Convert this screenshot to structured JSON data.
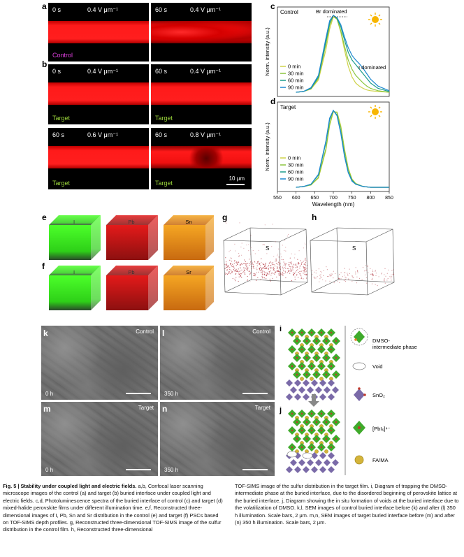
{
  "panel_letters": {
    "a": "a",
    "b": "b",
    "c": "c",
    "d": "d",
    "e": "e",
    "f": "f",
    "g": "g",
    "h": "h",
    "k": "k",
    "l": "l",
    "m": "m",
    "n": "n",
    "i": "i",
    "j": "j"
  },
  "confocal": {
    "a_left": {
      "time": "0 s",
      "field": "0.4 V μm⁻¹",
      "label": "Control"
    },
    "a_right": {
      "time": "60 s",
      "field": "0.4 V μm⁻¹"
    },
    "b1_left": {
      "time": "0 s",
      "field": "0.4 V μm⁻¹",
      "label": "Target"
    },
    "b1_right": {
      "time": "60 s",
      "field": "0.4 V μm⁻¹",
      "label": "Target"
    },
    "b2_left": {
      "time": "60 s",
      "field": "0.6 V μm⁻¹",
      "label": "Target"
    },
    "b2_right": {
      "time": "60 s",
      "field": "0.8 V μm⁻¹",
      "label": "Target",
      "scale": "10 μm"
    },
    "colors": {
      "control_label": "#e040e0",
      "target_label": "#9ad53a"
    }
  },
  "pl_c": {
    "title": "Control",
    "annot_br": "Br dominated",
    "annot_i": "I dominated",
    "legend": [
      "0 min",
      "30 min",
      "60 min",
      "90 min"
    ]
  },
  "pl_d": {
    "title": "Target",
    "legend": [
      "0 min",
      "30 min",
      "60 min",
      "90 min"
    ]
  },
  "pl_axes": {
    "ylabel": "Norm. intensity (a.u.)",
    "xlabel": "Wavelength (nm)",
    "xticks": [
      "550",
      "600",
      "650",
      "700",
      "750",
      "800",
      "850"
    ]
  },
  "chart_data": [
    {
      "type": "line",
      "title": "Control",
      "xlabel": "Wavelength (nm)",
      "ylabel": "Norm. intensity (a.u.)",
      "xlim": [
        550,
        850
      ],
      "x": [
        600,
        620,
        640,
        660,
        680,
        690,
        700,
        710,
        720,
        730,
        740,
        750,
        760,
        770,
        780,
        790,
        800,
        820,
        850
      ],
      "series": [
        {
          "name": "0 min",
          "color": "#cfd24a",
          "values": [
            0,
            0.01,
            0.04,
            0.16,
            0.55,
            0.82,
            0.98,
            0.95,
            0.78,
            0.55,
            0.34,
            0.2,
            0.12,
            0.08,
            0.05,
            0.03,
            0.02,
            0.01,
            0
          ]
        },
        {
          "name": "30 min",
          "color": "#8cc63f",
          "values": [
            0,
            0.01,
            0.05,
            0.18,
            0.62,
            0.87,
            1.0,
            0.95,
            0.8,
            0.6,
            0.42,
            0.3,
            0.22,
            0.17,
            0.12,
            0.08,
            0.05,
            0.02,
            0
          ]
        },
        {
          "name": "60 min",
          "color": "#1b9c8a",
          "values": [
            0,
            0.01,
            0.05,
            0.2,
            0.66,
            0.9,
            1.0,
            0.96,
            0.85,
            0.68,
            0.52,
            0.42,
            0.36,
            0.3,
            0.24,
            0.18,
            0.12,
            0.05,
            0.01
          ]
        },
        {
          "name": "90 min",
          "color": "#1e88d0",
          "values": [
            0,
            0.01,
            0.06,
            0.22,
            0.7,
            0.93,
            1.0,
            0.97,
            0.88,
            0.72,
            0.58,
            0.48,
            0.42,
            0.37,
            0.31,
            0.24,
            0.17,
            0.08,
            0.02
          ]
        }
      ]
    },
    {
      "type": "line",
      "title": "Target",
      "xlabel": "Wavelength (nm)",
      "ylabel": "Norm. intensity (a.u.)",
      "xlim": [
        550,
        850
      ],
      "x": [
        600,
        620,
        640,
        660,
        680,
        690,
        700,
        710,
        720,
        730,
        740,
        750,
        760,
        780,
        800,
        850
      ],
      "series": [
        {
          "name": "0 min",
          "color": "#cfd24a",
          "values": [
            0,
            0.01,
            0.03,
            0.12,
            0.48,
            0.8,
            0.98,
            0.98,
            0.8,
            0.5,
            0.25,
            0.11,
            0.05,
            0.01,
            0,
            0
          ]
        },
        {
          "name": "30 min",
          "color": "#8cc63f",
          "values": [
            0,
            0.01,
            0.03,
            0.13,
            0.5,
            0.82,
            0.99,
            0.97,
            0.78,
            0.48,
            0.24,
            0.1,
            0.05,
            0.01,
            0,
            0
          ]
        },
        {
          "name": "60 min",
          "color": "#1b9c8a",
          "values": [
            0,
            0.01,
            0.04,
            0.16,
            0.58,
            0.88,
            1.0,
            0.94,
            0.72,
            0.42,
            0.2,
            0.09,
            0.04,
            0.01,
            0,
            0
          ]
        },
        {
          "name": "90 min",
          "color": "#1e88d0",
          "values": [
            0,
            0.01,
            0.04,
            0.17,
            0.6,
            0.9,
            1.0,
            0.93,
            0.7,
            0.4,
            0.19,
            0.08,
            0.04,
            0.01,
            0,
            0
          ]
        }
      ]
    }
  ],
  "cubes_e": [
    "I",
    "Pb",
    "Sn"
  ],
  "cubes_f": [
    "I",
    "Pb",
    "Sr"
  ],
  "tof_g": "S",
  "tof_h": "S",
  "sem": {
    "k": {
      "name": "Control",
      "time": "0 h"
    },
    "l": {
      "name": "Control",
      "time": "350 h"
    },
    "m": {
      "name": "Target",
      "time": "0 h"
    },
    "n": {
      "name": "Target",
      "time": "350 h"
    }
  },
  "schematic_legend": {
    "dmso": "DMSO-\nintermediate phase",
    "void": "Void",
    "sno2": "SnO₂",
    "pbi6": "[PbI₆]⁴⁻",
    "fama": "FA/MA"
  },
  "caption": {
    "fig": "Fig. 5 | Stability under coupled light and electric fields.",
    "left": " a,b, Confocal laser scanning microscope images of the control (a) and target (b) buried interface under coupled light and electric fields. c,d, Photoluminescence spectra of the buried interface of control (c) and target (d) mixed-halide perovskite films under different illumination time. e,f, Reconstructed three-dimensional images of I, Pb, Sn and Sr distribution in the control (e) and target (f) PSCs based on TOF-SIMS depth profiles. g, Reconstructed three-dimensional TOF-SIMS image of the sulfur distribution in the control film. h, Reconstructed three-dimensional",
    "right": "TOF-SIMS image of the sulfur distribution in the target film. i, Diagram of trapping the DMSO-intermediate phase at the buried interface, due to the disordered beginning of perovskite lattice at the buried interface. j, Diagram showing the in situ formation of voids at the buried interface due to the volatilization of DMSO. k,l, SEM images of control buried interface before (k) and after (l) 350 h illumination. Scale bars, 2 μm. m,n, SEM images of target buried interface before (m) and after (n) 350 h illumination. Scale bars, 2 μm."
  }
}
